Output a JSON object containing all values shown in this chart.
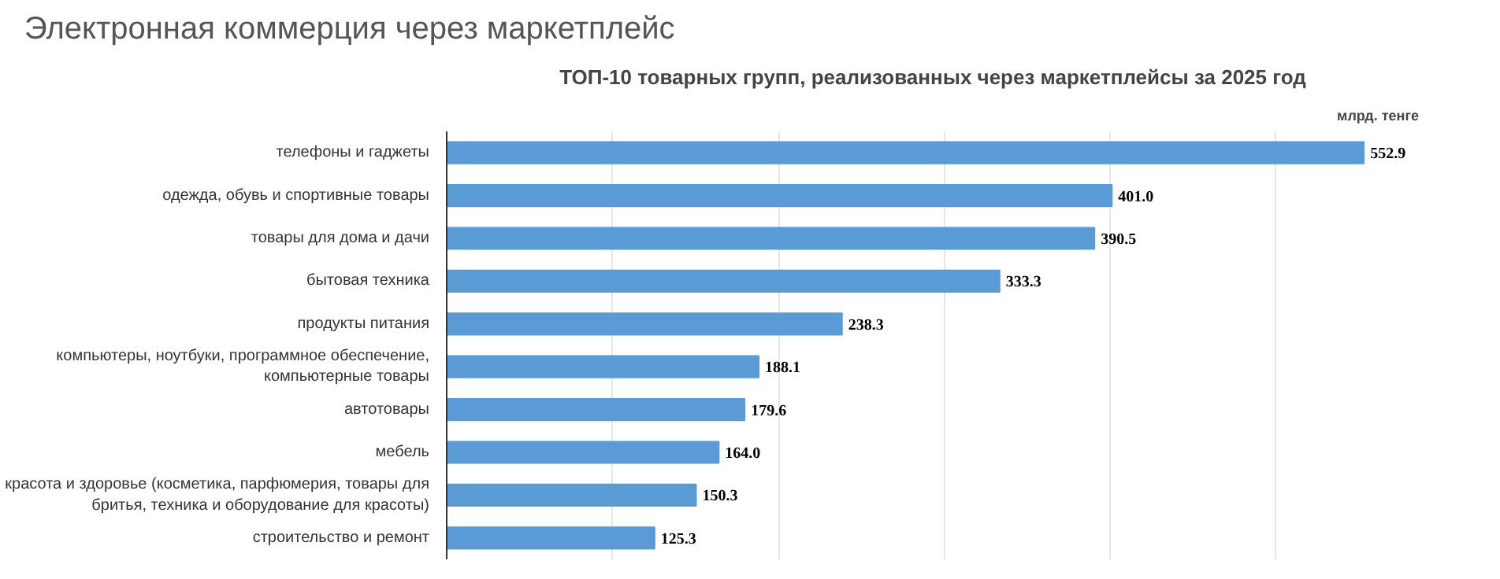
{
  "chart_data": {
    "type": "bar",
    "orientation": "horizontal",
    "title": "Электронная коммерция через маркетплейс",
    "subtitle": "ТОП-10 товарных групп, реализованных через маркетплейсы за 2025 год",
    "annotations": [
      "млрд. тенге"
    ],
    "categories": [
      "телефоны и гаджеты",
      "одежда, обувь и спортивные товары",
      "товары для дома и дачи",
      "бытовая техника",
      "продукты питания",
      "компьютеры, ноутбуки, программное обеспечение, компьютерные товары",
      "автотовары",
      "мебель",
      "красота и здоровье (косметика, парфюмерия, товары для бритья, техника и оборудование для красоты)",
      "строительство и ремонт"
    ],
    "values": [
      552.9,
      401.0,
      390.5,
      333.3,
      238.3,
      188.1,
      179.6,
      164.0,
      150.3,
      125.3
    ],
    "value_labels": [
      "552.9",
      "401.0",
      "390.5",
      "333.3",
      "238.3",
      "188.1",
      "179.6",
      "164.0",
      "150.3",
      "125.3"
    ],
    "color": "#5b9bd5",
    "tick_labels": "y",
    "grid": "x"
  }
}
